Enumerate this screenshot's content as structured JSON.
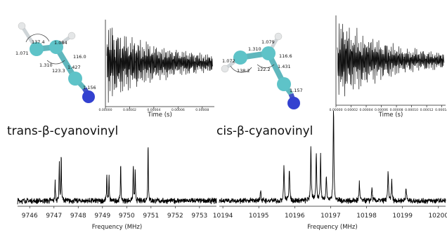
{
  "labels": {
    "trans_name": "trans-β-cyanovinyl",
    "cis_name": "cis-β-cyanovinyl"
  },
  "trans_molecule": {
    "labels": [
      "137.4",
      "1.084",
      "1.071",
      "116.0",
      "1.310",
      "123.3",
      "1.427",
      "1.156"
    ]
  },
  "cis_molecule": {
    "labels": [
      "1.079",
      "1.310",
      "116.6",
      "1.072",
      "138.2",
      "122.2",
      "1.431",
      "1.157"
    ]
  },
  "chart_data": [
    {
      "type": "line",
      "id": "trans-fid",
      "xlabel": "Time (s)",
      "ylabel": "",
      "xtick_labels": [
        "0.00000",
        "0.00002",
        "0.00004",
        "0.00006",
        "0.00008"
      ],
      "xlim": [
        0,
        9e-05
      ],
      "color": "#111111"
    },
    {
      "type": "line",
      "id": "cis-fid",
      "xlabel": "Time (s)",
      "ylabel": "",
      "xtick_labels": [
        "0.00000",
        "0.00002",
        "0.00004",
        "0.00006",
        "0.00008",
        "0.00010",
        "0.00012",
        "0.00014"
      ],
      "xlim": [
        0,
        0.000145
      ],
      "color": "#111111"
    },
    {
      "type": "line",
      "id": "trans-spectrum",
      "xlabel": "Frequency (MHz)",
      "ylabel": "",
      "xtick_labels": [
        "9746",
        "9747",
        "9748",
        "9749",
        "9750",
        "9751",
        "9752",
        "9753"
      ],
      "xlim": [
        9745.5,
        9753.7
      ],
      "peaks": [
        {
          "x": 9747.05,
          "h": 0.3
        },
        {
          "x": 9747.22,
          "h": 0.63
        },
        {
          "x": 9747.3,
          "h": 0.72
        },
        {
          "x": 9749.18,
          "h": 0.42
        },
        {
          "x": 9749.27,
          "h": 0.37
        },
        {
          "x": 9749.75,
          "h": 0.6
        },
        {
          "x": 9750.27,
          "h": 0.57
        },
        {
          "x": 9750.35,
          "h": 0.45
        },
        {
          "x": 9750.88,
          "h": 0.93
        }
      ]
    },
    {
      "type": "line",
      "id": "cis-spectrum",
      "xlabel": "Frequency (MHz)",
      "ylabel": "",
      "xtick_labels": [
        "10194",
        "10195",
        "10196",
        "10197",
        "10198",
        "10199",
        "10200"
      ],
      "xlim": [
        10193.9,
        10200.2
      ],
      "peaks": [
        {
          "x": 10195.05,
          "h": 0.18
        },
        {
          "x": 10195.7,
          "h": 0.55
        },
        {
          "x": 10195.85,
          "h": 0.52
        },
        {
          "x": 10196.45,
          "h": 0.83
        },
        {
          "x": 10196.6,
          "h": 0.75
        },
        {
          "x": 10196.72,
          "h": 0.68
        },
        {
          "x": 10196.88,
          "h": 0.42
        },
        {
          "x": 10197.08,
          "h": 1.45
        },
        {
          "x": 10197.8,
          "h": 0.28
        },
        {
          "x": 10198.15,
          "h": 0.2
        },
        {
          "x": 10198.6,
          "h": 0.45
        },
        {
          "x": 10198.7,
          "h": 0.3
        },
        {
          "x": 10199.1,
          "h": 0.22
        }
      ]
    }
  ]
}
